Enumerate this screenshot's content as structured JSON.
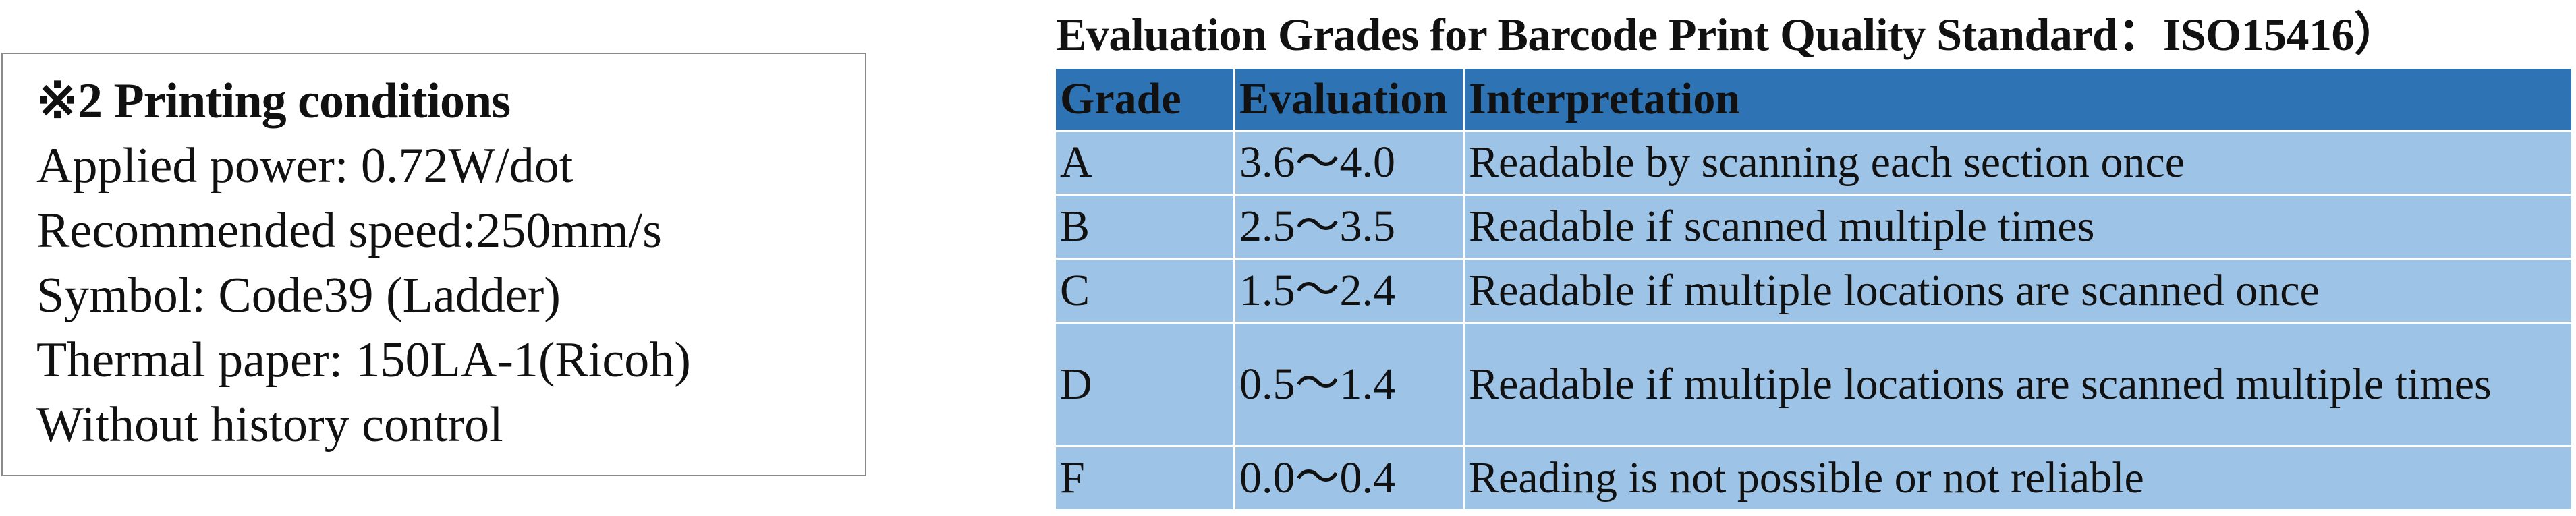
{
  "printing_conditions": {
    "title": "※2 Printing conditions",
    "lines": [
      "Applied power: 0.72W/dot",
      "Recommended speed:250mm/s",
      "Symbol: Code39 (Ladder)",
      "Thermal paper: 150LA-1(Ricoh)",
      "Without history control"
    ]
  },
  "grades": {
    "title": "Evaluation Grades for Barcode Print Quality Standard：ISO15416）",
    "header_color": "#2e74b5",
    "row_color": "#9dc3e6",
    "columns": [
      "Grade",
      "Evaluation",
      "Interpretation"
    ],
    "rows": [
      {
        "grade": "A",
        "evaluation": "3.6～4.0",
        "interpretation": "Readable by scanning each section once"
      },
      {
        "grade": "B",
        "evaluation": "2.5～3.5",
        "interpretation": "Readable if scanned multiple times"
      },
      {
        "grade": "C",
        "evaluation": "1.5～2.4",
        "interpretation": "Readable if multiple locations are scanned once"
      },
      {
        "grade": "D",
        "evaluation": "0.5～1.4",
        "interpretation": "Readable if multiple locations are scanned multiple times"
      },
      {
        "grade": "F",
        "evaluation": "0.0～0.4",
        "interpretation": "Reading is not possible or not reliable"
      }
    ]
  }
}
